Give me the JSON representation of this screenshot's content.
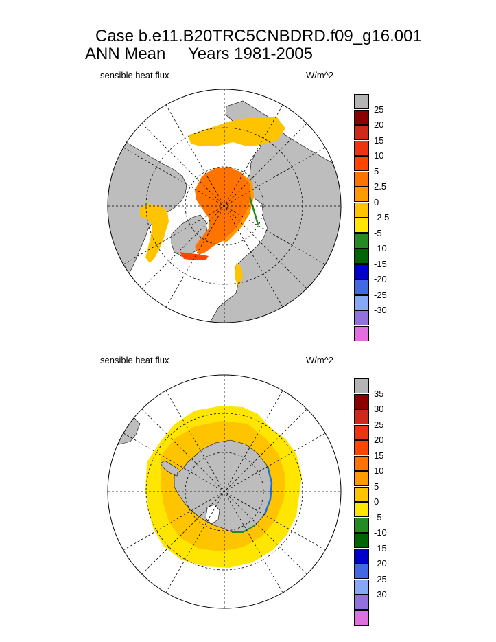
{
  "header": {
    "case_line": "Case b.e11.B20TRC5CNBDRD.f09_g16.001",
    "mean_label": "ANN Mean",
    "years_label": "Years 1981-2005"
  },
  "colors": {
    "land": "#bdbdbd",
    "ocean_background": "#ffffff"
  },
  "panels": [
    {
      "id": "north",
      "hemisphere": "Northern Hemisphere (polar stereographic)",
      "variable": "sensible heat flux",
      "units": "W/m^2",
      "colorbar": {
        "levels": [
          "25",
          "20",
          "15",
          "10",
          "5",
          "2.5",
          "0",
          "-2.5",
          "-5",
          "-10",
          "-15",
          "-20",
          "-25",
          "-30"
        ],
        "colors": [
          "#b4b4b4",
          "#8b0000",
          "#cd2a1a",
          "#ee3310",
          "#ff4500",
          "#ff7300",
          "#ff9a00",
          "#ffc400",
          "#ffe600",
          "#228b22",
          "#006400",
          "#0000cd",
          "#4169e1",
          "#87a8f5",
          "#9370db",
          "#e070e0"
        ]
      }
    },
    {
      "id": "south",
      "hemisphere": "Southern Hemisphere (polar stereographic)",
      "variable": "sensible heat flux",
      "units": "W/m^2",
      "colorbar": {
        "levels": [
          "35",
          "30",
          "25",
          "20",
          "15",
          "10",
          "5",
          "0",
          "-5",
          "-10",
          "-15",
          "-20",
          "-25",
          "-30"
        ],
        "colors": [
          "#b4b4b4",
          "#8b0000",
          "#cd2a1a",
          "#ee3310",
          "#ff4500",
          "#ff7300",
          "#ff9a00",
          "#ffc400",
          "#ffe600",
          "#228b22",
          "#006400",
          "#0000cd",
          "#4169e1",
          "#87a8f5",
          "#9370db",
          "#e070e0"
        ]
      }
    }
  ]
}
